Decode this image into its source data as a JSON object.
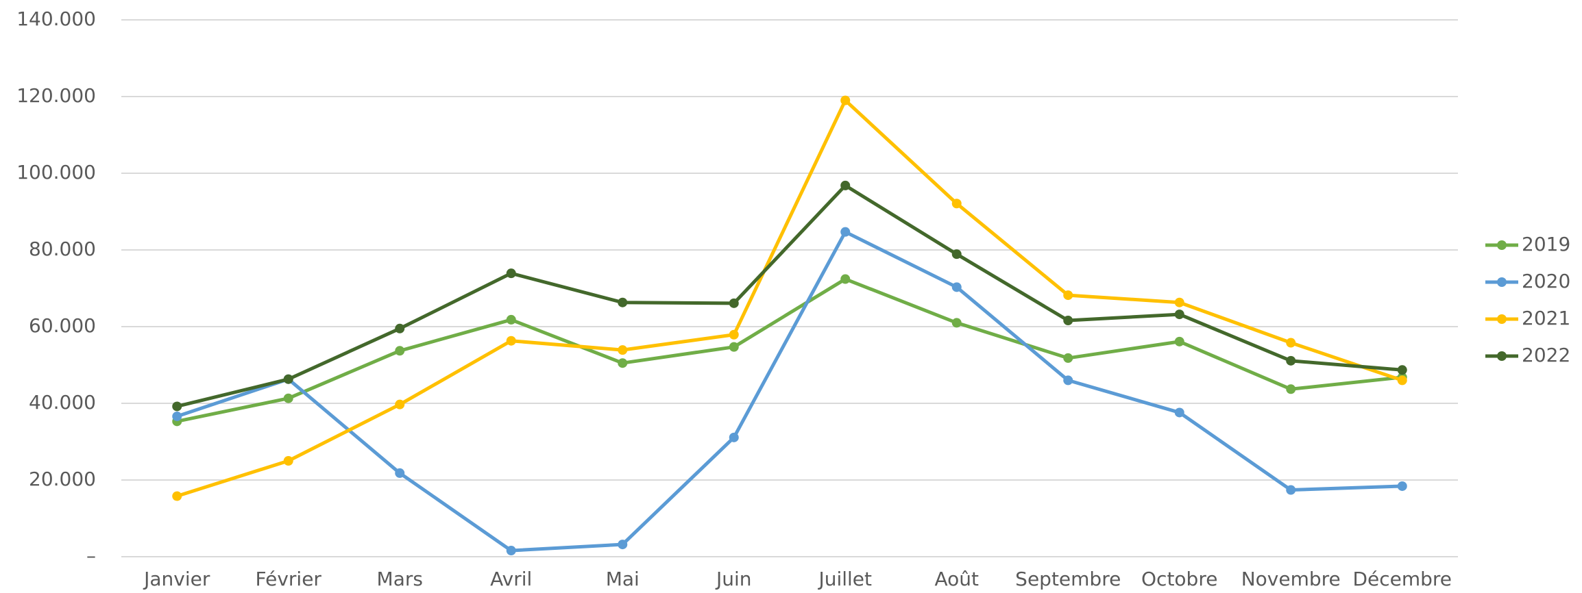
{
  "chart_data": {
    "type": "line",
    "categories": [
      "Janvier",
      "Février",
      "Mars",
      "Avril",
      "Mai",
      "Juin",
      "Juillet",
      "Août",
      "Septembre",
      "Octobre",
      "Novembre",
      "Décembre"
    ],
    "series": [
      {
        "name": "2019",
        "color": "#70ad47",
        "values": [
          35300,
          41300,
          53700,
          61800,
          50500,
          54700,
          72400,
          61000,
          51800,
          56100,
          43700,
          46800
        ]
      },
      {
        "name": "2020",
        "color": "#5b9bd5",
        "values": [
          36600,
          46300,
          21800,
          1600,
          3200,
          31100,
          84700,
          70300,
          46000,
          37600,
          17400,
          18400
        ]
      },
      {
        "name": "2021",
        "color": "#ffc000",
        "values": [
          15800,
          25000,
          39700,
          56300,
          53900,
          57900,
          119000,
          92100,
          68200,
          66300,
          55800,
          46000
        ]
      },
      {
        "name": "2022",
        "color": "#43682b",
        "values": [
          39200,
          46300,
          59500,
          73900,
          66300,
          66100,
          96800,
          78900,
          61600,
          63200,
          51100,
          48700
        ]
      }
    ],
    "ylim": [
      0,
      140000
    ],
    "yticks": [
      {
        "value": 0,
        "label": "–"
      },
      {
        "value": 20000,
        "label": "20.000"
      },
      {
        "value": 40000,
        "label": "40.000"
      },
      {
        "value": 60000,
        "label": "60.000"
      },
      {
        "value": 80000,
        "label": "80.000"
      },
      {
        "value": 100000,
        "label": "100.000"
      },
      {
        "value": 120000,
        "label": "120.000"
      },
      {
        "value": 140000,
        "label": "140.000"
      }
    ],
    "grid": true,
    "legend": "right"
  }
}
